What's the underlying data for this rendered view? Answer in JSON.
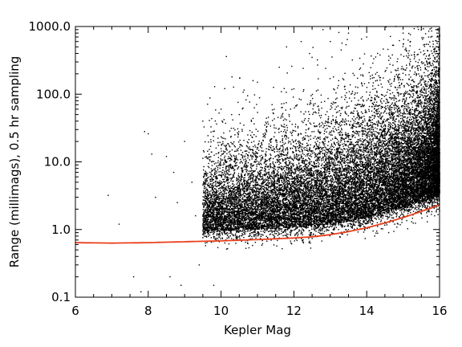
{
  "chart_data": {
    "type": "scatter",
    "title": "",
    "xlabel": "Kepler Mag",
    "ylabel": "Range (millimags), 0.5 hr sampling",
    "xlim": [
      6,
      16
    ],
    "ylim": [
      0.1,
      1000
    ],
    "yscale": "log",
    "grid": false,
    "legend": "none",
    "x_ticks": [
      {
        "value": 6,
        "label": "6"
      },
      {
        "value": 8,
        "label": "8"
      },
      {
        "value": 10,
        "label": "10"
      },
      {
        "value": 12,
        "label": "12"
      },
      {
        "value": 14,
        "label": "14"
      },
      {
        "value": 16,
        "label": "16"
      }
    ],
    "y_ticks": [
      {
        "value": 0.1,
        "label": "0.1"
      },
      {
        "value": 1,
        "label": "1.0"
      },
      {
        "value": 10,
        "label": "10.0"
      },
      {
        "value": 100,
        "label": "100.0"
      },
      {
        "value": 1000,
        "label": "1000.0"
      }
    ],
    "series": [
      {
        "type": "line",
        "color": "#e8401c",
        "x": [
          6.0,
          7.0,
          8.0,
          9.0,
          10.0,
          11.0,
          12.0,
          12.5,
          13.0,
          13.5,
          14.0,
          14.5,
          15.0,
          15.5,
          16.0
        ],
        "y": [
          0.64,
          0.63,
          0.64,
          0.66,
          0.68,
          0.71,
          0.75,
          0.78,
          0.84,
          0.93,
          1.06,
          1.25,
          1.5,
          1.85,
          2.3
        ]
      },
      {
        "type": "scatter",
        "color": "#000000",
        "x": [
          6.9,
          7.2,
          7.6,
          7.8,
          7.9,
          8.0,
          8.1,
          8.2,
          8.5,
          8.6,
          8.7,
          8.8,
          8.9,
          9.0,
          9.2,
          9.3,
          9.4,
          9.5,
          9.6,
          9.7,
          9.8,
          10.0,
          10.1,
          10.2,
          10.3,
          10.5,
          10.7,
          10.9,
          11.0,
          11.2,
          11.4,
          11.6,
          11.8,
          12.0,
          12.2,
          12.5,
          12.8,
          13.0,
          13.3,
          13.5,
          13.8,
          14.0,
          14.3,
          14.5,
          14.8,
          15.0,
          15.2,
          15.5,
          15.7,
          15.8,
          15.9,
          16.0
        ],
        "y": [
          3.2,
          1.2,
          0.2,
          0.12,
          28,
          26,
          13,
          3,
          12,
          0.2,
          7,
          2.5,
          0.15,
          20,
          5,
          1.6,
          0.3,
          40,
          12,
          0.9,
          0.15,
          60,
          14,
          3.5,
          180,
          50,
          9,
          20,
          150,
          35,
          70,
          250,
          500,
          120,
          600,
          350,
          900,
          600,
          450,
          800,
          1000,
          700,
          400,
          900,
          1000,
          800,
          600,
          1000,
          700,
          400,
          900,
          500
        ]
      }
    ]
  }
}
